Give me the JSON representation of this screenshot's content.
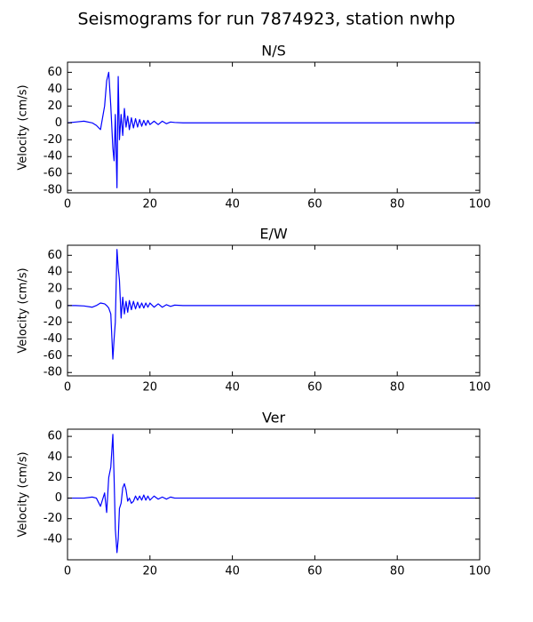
{
  "title": "Seismograms for run 7874923, station nwhp",
  "chart_data": [
    {
      "type": "line",
      "title": "N/S",
      "y_label": "Velocity (cm/s)",
      "color": "#0000ff",
      "x": [
        0,
        2,
        4,
        6,
        7,
        8,
        9,
        9.5,
        10,
        10.5,
        11,
        11.3,
        11.6,
        12,
        12.3,
        12.6,
        13,
        13.4,
        13.8,
        14.2,
        14.6,
        15,
        15.5,
        16,
        16.5,
        17,
        17.5,
        18,
        18.5,
        19,
        19.5,
        20,
        21,
        22,
        23,
        24,
        25,
        26,
        28,
        30,
        40,
        50,
        60,
        70,
        80,
        90,
        100
      ],
      "values": [
        0,
        1,
        2,
        0,
        -3,
        -8,
        20,
        50,
        60,
        20,
        -30,
        -45,
        10,
        -77,
        55,
        -20,
        10,
        -15,
        17,
        -5,
        8,
        -8,
        6,
        -6,
        5,
        -5,
        4,
        -4,
        3,
        -3,
        3,
        -2,
        2,
        -2,
        2,
        -1,
        1,
        0.5,
        0,
        0,
        0,
        0,
        0,
        0,
        0,
        0,
        0
      ],
      "xlim": [
        0,
        100
      ],
      "xticks": [
        0,
        20,
        40,
        60,
        80,
        100
      ],
      "ylim": [
        -83,
        72
      ],
      "yticks": [
        -80,
        -60,
        -40,
        -20,
        0,
        20,
        40,
        60
      ]
    },
    {
      "type": "line",
      "title": "E/W",
      "y_label": "Velocity (cm/s)",
      "color": "#0000ff",
      "x": [
        0,
        2,
        4,
        6,
        7,
        8,
        9,
        9.5,
        10,
        10.5,
        11,
        11.3,
        11.6,
        12,
        12.3,
        12.6,
        13,
        13.4,
        13.8,
        14.2,
        14.6,
        15,
        15.5,
        16,
        16.5,
        17,
        17.5,
        18,
        18.5,
        19,
        19.5,
        20,
        21,
        22,
        23,
        24,
        25,
        26,
        28,
        30,
        40,
        50,
        60,
        70,
        80,
        90,
        100
      ],
      "values": [
        0,
        0,
        -0.5,
        -2,
        0,
        3,
        2,
        0,
        -3,
        -10,
        -64,
        -40,
        -20,
        67,
        45,
        30,
        -15,
        10,
        -10,
        5,
        -8,
        6,
        -5,
        5,
        -4,
        4,
        -3,
        3,
        -3,
        3,
        -2,
        3,
        -2,
        2,
        -2,
        1,
        -1,
        0.5,
        0,
        0,
        0,
        0,
        0,
        0,
        0,
        0,
        0
      ],
      "xlim": [
        0,
        100
      ],
      "xticks": [
        0,
        20,
        40,
        60,
        80,
        100
      ],
      "ylim": [
        -84,
        72
      ],
      "yticks": [
        -80,
        -60,
        -40,
        -20,
        0,
        20,
        40,
        60
      ]
    },
    {
      "type": "line",
      "title": "Ver",
      "y_label": "Velocity (cm/s)",
      "color": "#0000ff",
      "x": [
        0,
        2,
        4,
        6,
        7,
        8,
        9,
        9.5,
        10,
        10.5,
        11,
        11.3,
        11.6,
        12,
        12.3,
        12.6,
        13,
        13.4,
        13.8,
        14.2,
        14.6,
        15,
        15.5,
        16,
        16.5,
        17,
        17.5,
        18,
        18.5,
        19,
        19.5,
        20,
        21,
        22,
        23,
        24,
        25,
        26,
        28,
        30,
        40,
        50,
        60,
        70,
        80,
        90,
        100
      ],
      "values": [
        0,
        0,
        0,
        1,
        0,
        -8,
        5,
        -14,
        20,
        30,
        62,
        20,
        -30,
        -53,
        -40,
        -10,
        -5,
        10,
        14,
        8,
        -3,
        0,
        -5,
        -3,
        2,
        -2,
        2,
        -2,
        3,
        -2,
        2,
        -2,
        2,
        -1,
        1,
        -1,
        1,
        0,
        0,
        0,
        0,
        0,
        0,
        0,
        0,
        0,
        0
      ],
      "xlim": [
        0,
        100
      ],
      "xticks": [
        0,
        20,
        40,
        60,
        80,
        100
      ],
      "ylim": [
        -60,
        67
      ],
      "yticks": [
        -40,
        -20,
        0,
        20,
        40,
        60
      ]
    }
  ]
}
